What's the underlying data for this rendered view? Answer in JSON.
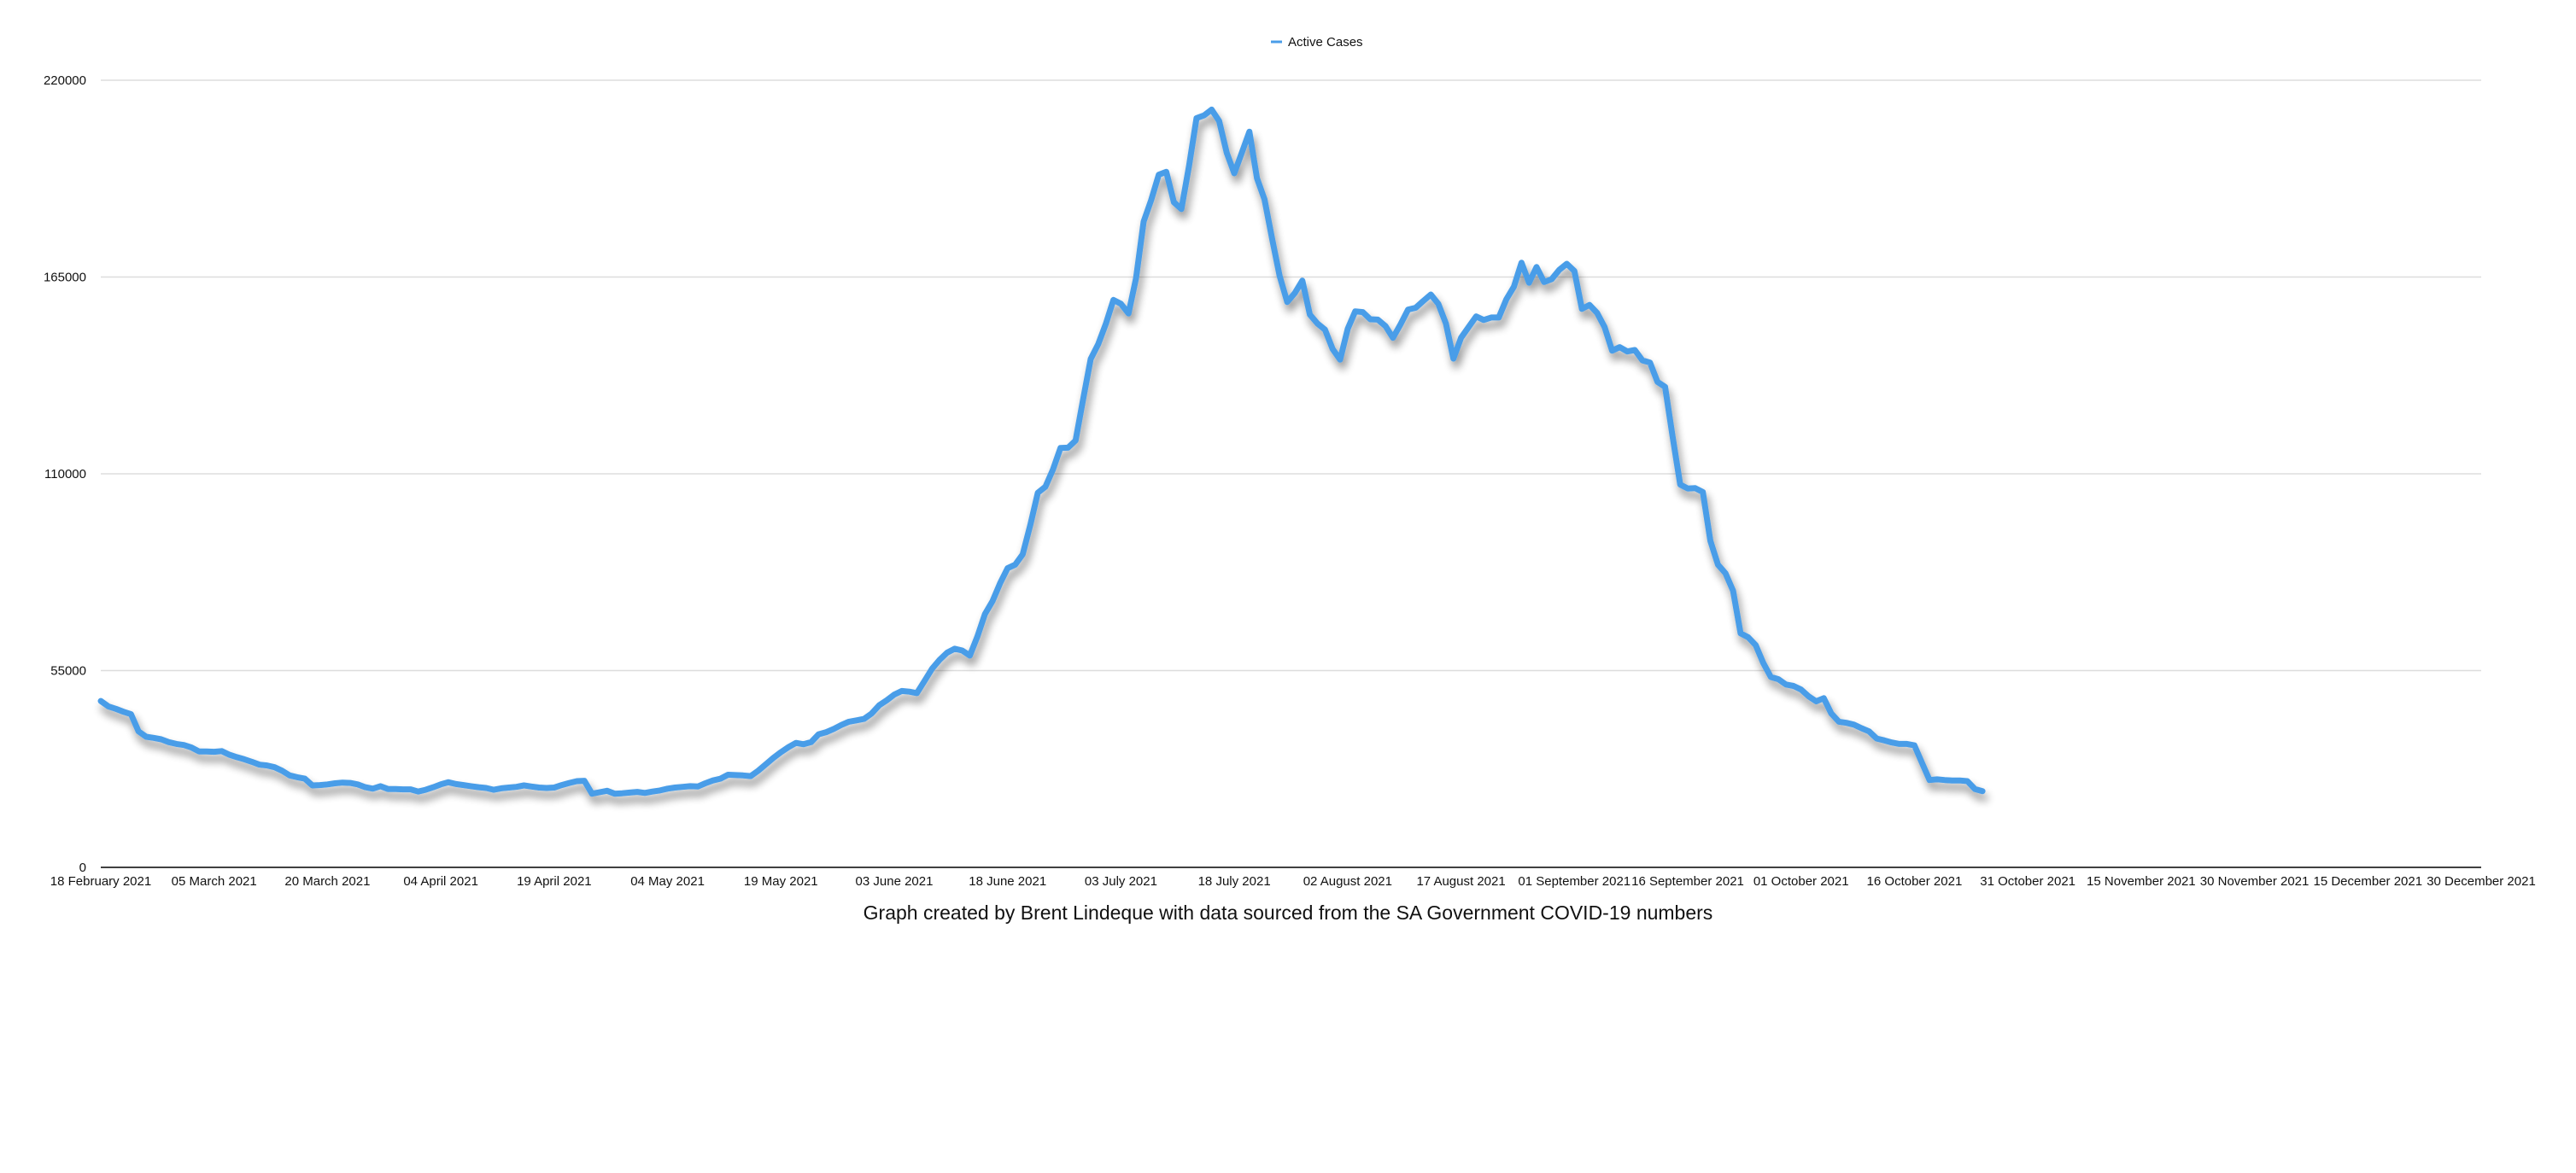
{
  "caption": "Graph created by Brent Lindeque with data sourced from the SA Government COVID-19 numbers",
  "colors": {
    "series": "#4a9de8",
    "grid": "#dddddd",
    "axis": "#000000"
  },
  "chart_data": {
    "type": "line",
    "title": "",
    "xlabel": "",
    "ylabel": "",
    "legend": {
      "position": "top-center",
      "entries": [
        "Active Cases"
      ]
    },
    "grid": true,
    "x_type": "date",
    "xlim": [
      "2021-02-18",
      "2021-12-30"
    ],
    "ylim": [
      0,
      220000
    ],
    "y_ticks": [
      0,
      55000,
      110000,
      165000,
      220000
    ],
    "x_ticks": [
      {
        "date": "2021-02-18",
        "label": "18 February 2021"
      },
      {
        "date": "2021-03-05",
        "label": "05 March 2021"
      },
      {
        "date": "2021-03-20",
        "label": "20 March 2021"
      },
      {
        "date": "2021-04-04",
        "label": "04 April 2021"
      },
      {
        "date": "2021-04-19",
        "label": "19 April 2021"
      },
      {
        "date": "2021-05-04",
        "label": "04 May 2021"
      },
      {
        "date": "2021-05-19",
        "label": "19 May 2021"
      },
      {
        "date": "2021-06-03",
        "label": "03 June 2021"
      },
      {
        "date": "2021-06-18",
        "label": "18 June 2021"
      },
      {
        "date": "2021-07-03",
        "label": "03 July 2021"
      },
      {
        "date": "2021-07-18",
        "label": "18 July 2021"
      },
      {
        "date": "2021-08-02",
        "label": "02 August 2021"
      },
      {
        "date": "2021-08-17",
        "label": "17 August 2021"
      },
      {
        "date": "2021-09-01",
        "label": "01 September 2021"
      },
      {
        "date": "2021-09-16",
        "label": "16 September 2021"
      },
      {
        "date": "2021-10-01",
        "label": "01 October 2021"
      },
      {
        "date": "2021-10-16",
        "label": "16 October 2021"
      },
      {
        "date": "2021-10-31",
        "label": "31 October 2021"
      },
      {
        "date": "2021-11-15",
        "label": "15 November 2021"
      },
      {
        "date": "2021-11-30",
        "label": "30 November 2021"
      },
      {
        "date": "2021-12-15",
        "label": "15 December 2021"
      },
      {
        "date": "2021-12-30",
        "label": "30 December 2021"
      }
    ],
    "series": [
      {
        "name": "Active Cases",
        "points": [
          [
            "2021-02-18",
            46500
          ],
          [
            "2021-02-19",
            45000
          ],
          [
            "2021-02-20",
            44300
          ],
          [
            "2021-02-21",
            43500
          ],
          [
            "2021-02-22",
            42800
          ],
          [
            "2021-02-23",
            38000
          ],
          [
            "2021-02-24",
            36500
          ],
          [
            "2021-02-25",
            36200
          ],
          [
            "2021-02-26",
            35800
          ],
          [
            "2021-02-27",
            35000
          ],
          [
            "2021-02-28",
            34500
          ],
          [
            "2021-03-01",
            34200
          ],
          [
            "2021-03-02",
            33500
          ],
          [
            "2021-03-03",
            32400
          ],
          [
            "2021-03-04",
            32400
          ],
          [
            "2021-03-05",
            32300
          ],
          [
            "2021-03-06",
            32500
          ],
          [
            "2021-03-07",
            31500
          ],
          [
            "2021-03-08",
            30800
          ],
          [
            "2021-03-09",
            30200
          ],
          [
            "2021-03-10",
            29500
          ],
          [
            "2021-03-11",
            28700
          ],
          [
            "2021-03-12",
            28500
          ],
          [
            "2021-03-13",
            28000
          ],
          [
            "2021-03-14",
            27000
          ],
          [
            "2021-03-15",
            25700
          ],
          [
            "2021-03-16",
            25200
          ],
          [
            "2021-03-17",
            24800
          ],
          [
            "2021-03-18",
            22900
          ],
          [
            "2021-03-19",
            23000
          ],
          [
            "2021-03-20",
            23200
          ],
          [
            "2021-03-21",
            23500
          ],
          [
            "2021-03-22",
            23700
          ],
          [
            "2021-03-23",
            23600
          ],
          [
            "2021-03-24",
            23200
          ],
          [
            "2021-03-25",
            22400
          ],
          [
            "2021-03-26",
            22000
          ],
          [
            "2021-03-27",
            22700
          ],
          [
            "2021-03-28",
            21900
          ],
          [
            "2021-03-29",
            21900
          ],
          [
            "2021-03-30",
            21800
          ],
          [
            "2021-03-31",
            21800
          ],
          [
            "2021-04-01",
            21200
          ],
          [
            "2021-04-02",
            21700
          ],
          [
            "2021-04-03",
            22400
          ],
          [
            "2021-04-04",
            23200
          ],
          [
            "2021-04-05",
            23800
          ],
          [
            "2021-04-06",
            23300
          ],
          [
            "2021-04-07",
            23000
          ],
          [
            "2021-04-08",
            22700
          ],
          [
            "2021-04-09",
            22400
          ],
          [
            "2021-04-10",
            22200
          ],
          [
            "2021-04-11",
            21700
          ],
          [
            "2021-04-12",
            22100
          ],
          [
            "2021-04-13",
            22300
          ],
          [
            "2021-04-14",
            22500
          ],
          [
            "2021-04-15",
            22900
          ],
          [
            "2021-04-16",
            22600
          ],
          [
            "2021-04-17",
            22300
          ],
          [
            "2021-04-18",
            22200
          ],
          [
            "2021-04-19",
            22300
          ],
          [
            "2021-04-20",
            23000
          ],
          [
            "2021-04-21",
            23600
          ],
          [
            "2021-04-22",
            24100
          ],
          [
            "2021-04-23",
            24200
          ],
          [
            "2021-04-24",
            20600
          ],
          [
            "2021-04-25",
            21000
          ],
          [
            "2021-04-26",
            21400
          ],
          [
            "2021-04-27",
            20600
          ],
          [
            "2021-04-28",
            20700
          ],
          [
            "2021-04-29",
            20900
          ],
          [
            "2021-04-30",
            21100
          ],
          [
            "2021-05-01",
            20800
          ],
          [
            "2021-05-02",
            21200
          ],
          [
            "2021-05-03",
            21500
          ],
          [
            "2021-05-04",
            22000
          ],
          [
            "2021-05-05",
            22300
          ],
          [
            "2021-05-06",
            22500
          ],
          [
            "2021-05-07",
            22700
          ],
          [
            "2021-05-08",
            22600
          ],
          [
            "2021-05-09",
            23500
          ],
          [
            "2021-05-10",
            24300
          ],
          [
            "2021-05-11",
            24800
          ],
          [
            "2021-05-12",
            25900
          ],
          [
            "2021-05-13",
            25800
          ],
          [
            "2021-05-14",
            25700
          ],
          [
            "2021-05-15",
            25500
          ],
          [
            "2021-05-16",
            27000
          ],
          [
            "2021-05-17",
            28800
          ],
          [
            "2021-05-18",
            30600
          ],
          [
            "2021-05-19",
            32200
          ],
          [
            "2021-05-20",
            33600
          ],
          [
            "2021-05-21",
            34800
          ],
          [
            "2021-05-22",
            34400
          ],
          [
            "2021-05-23",
            35000
          ],
          [
            "2021-05-24",
            37200
          ],
          [
            "2021-05-25",
            37800
          ],
          [
            "2021-05-26",
            38700
          ],
          [
            "2021-05-27",
            39800
          ],
          [
            "2021-05-28",
            40700
          ],
          [
            "2021-05-29",
            41100
          ],
          [
            "2021-05-30",
            41500
          ],
          [
            "2021-05-31",
            43000
          ],
          [
            "2021-06-01",
            45300
          ],
          [
            "2021-06-02",
            46700
          ],
          [
            "2021-06-03",
            48300
          ],
          [
            "2021-06-04",
            49300
          ],
          [
            "2021-06-05",
            49100
          ],
          [
            "2021-06-06",
            48700
          ],
          [
            "2021-06-07",
            52100
          ],
          [
            "2021-06-08",
            55500
          ],
          [
            "2021-06-09",
            58000
          ],
          [
            "2021-06-10",
            60000
          ],
          [
            "2021-06-11",
            61100
          ],
          [
            "2021-06-12",
            60600
          ],
          [
            "2021-06-13",
            59200
          ],
          [
            "2021-06-14",
            64500
          ],
          [
            "2021-06-15",
            70800
          ],
          [
            "2021-06-16",
            74400
          ],
          [
            "2021-06-17",
            79400
          ],
          [
            "2021-06-18",
            83600
          ],
          [
            "2021-06-19",
            84600
          ],
          [
            "2021-06-20",
            87500
          ],
          [
            "2021-06-21",
            95700
          ],
          [
            "2021-06-22",
            104700
          ],
          [
            "2021-06-23",
            106400
          ],
          [
            "2021-06-24",
            111200
          ],
          [
            "2021-06-25",
            117200
          ],
          [
            "2021-06-26",
            117300
          ],
          [
            "2021-06-27",
            119300
          ],
          [
            "2021-06-28",
            130900
          ],
          [
            "2021-06-29",
            142100
          ],
          [
            "2021-06-30",
            146300
          ],
          [
            "2021-07-01",
            151900
          ],
          [
            "2021-07-02",
            158600
          ],
          [
            "2021-07-03",
            157500
          ],
          [
            "2021-07-04",
            154800
          ],
          [
            "2021-07-05",
            164700
          ],
          [
            "2021-07-06",
            180500
          ],
          [
            "2021-07-07",
            186500
          ],
          [
            "2021-07-08",
            193600
          ],
          [
            "2021-07-09",
            194400
          ],
          [
            "2021-07-10",
            185900
          ],
          [
            "2021-07-11",
            184000
          ],
          [
            "2021-07-12",
            196000
          ],
          [
            "2021-07-13",
            209400
          ],
          [
            "2021-07-14",
            210200
          ],
          [
            "2021-07-15",
            211800
          ],
          [
            "2021-07-16",
            208600
          ],
          [
            "2021-07-17",
            199700
          ],
          [
            "2021-07-18",
            194000
          ],
          [
            "2021-07-19",
            199800
          ],
          [
            "2021-07-20",
            205600
          ],
          [
            "2021-07-21",
            192600
          ],
          [
            "2021-07-22",
            186700
          ],
          [
            "2021-07-23",
            175700
          ],
          [
            "2021-07-24",
            165300
          ],
          [
            "2021-07-25",
            158000
          ],
          [
            "2021-07-26",
            160500
          ],
          [
            "2021-07-27",
            164000
          ],
          [
            "2021-07-28",
            154500
          ],
          [
            "2021-07-29",
            152000
          ],
          [
            "2021-07-30",
            150300
          ],
          [
            "2021-07-31",
            144900
          ],
          [
            "2021-08-01",
            141900
          ],
          [
            "2021-08-02",
            150500
          ],
          [
            "2021-08-03",
            155400
          ],
          [
            "2021-08-04",
            155200
          ],
          [
            "2021-08-05",
            153200
          ],
          [
            "2021-08-06",
            153100
          ],
          [
            "2021-08-07",
            151300
          ],
          [
            "2021-08-08",
            148000
          ],
          [
            "2021-08-09",
            151800
          ],
          [
            "2021-08-10",
            155900
          ],
          [
            "2021-08-11",
            156400
          ],
          [
            "2021-08-12",
            158300
          ],
          [
            "2021-08-13",
            160100
          ],
          [
            "2021-08-14",
            157500
          ],
          [
            "2021-08-15",
            152000
          ],
          [
            "2021-08-16",
            142200
          ],
          [
            "2021-08-17",
            148000
          ],
          [
            "2021-08-18",
            151000
          ],
          [
            "2021-08-19",
            154000
          ],
          [
            "2021-08-20",
            153000
          ],
          [
            "2021-08-21",
            153700
          ],
          [
            "2021-08-22",
            153700
          ],
          [
            "2021-08-23",
            158800
          ],
          [
            "2021-08-24",
            162300
          ],
          [
            "2021-08-25",
            169000
          ],
          [
            "2021-08-26",
            163400
          ],
          [
            "2021-08-27",
            167800
          ],
          [
            "2021-08-28",
            163600
          ],
          [
            "2021-08-29",
            164400
          ],
          [
            "2021-08-30",
            167000
          ],
          [
            "2021-08-31",
            168700
          ],
          [
            "2021-09-01",
            166700
          ],
          [
            "2021-09-02",
            156100
          ],
          [
            "2021-09-03",
            157200
          ],
          [
            "2021-09-04",
            155000
          ],
          [
            "2021-09-05",
            151000
          ],
          [
            "2021-09-06",
            144400
          ],
          [
            "2021-09-07",
            145400
          ],
          [
            "2021-09-08",
            144200
          ],
          [
            "2021-09-09",
            144600
          ],
          [
            "2021-09-10",
            141700
          ],
          [
            "2021-09-11",
            141100
          ],
          [
            "2021-09-12",
            135700
          ],
          [
            "2021-09-13",
            134300
          ],
          [
            "2021-09-14",
            120400
          ],
          [
            "2021-09-15",
            107000
          ],
          [
            "2021-09-16",
            105900
          ],
          [
            "2021-09-17",
            106000
          ],
          [
            "2021-09-18",
            104900
          ],
          [
            "2021-09-19",
            91300
          ],
          [
            "2021-09-20",
            84600
          ],
          [
            "2021-09-21",
            82200
          ],
          [
            "2021-09-22",
            77300
          ],
          [
            "2021-09-23",
            65400
          ],
          [
            "2021-09-24",
            64300
          ],
          [
            "2021-09-25",
            62100
          ],
          [
            "2021-09-26",
            57100
          ],
          [
            "2021-09-27",
            53200
          ],
          [
            "2021-09-28",
            52600
          ],
          [
            "2021-09-29",
            51100
          ],
          [
            "2021-09-30",
            50700
          ],
          [
            "2021-10-01",
            49700
          ],
          [
            "2021-10-02",
            47800
          ],
          [
            "2021-10-03",
            46400
          ],
          [
            "2021-10-04",
            47300
          ],
          [
            "2021-10-05",
            43000
          ],
          [
            "2021-10-06",
            40700
          ],
          [
            "2021-10-07",
            40400
          ],
          [
            "2021-10-08",
            39900
          ],
          [
            "2021-10-09",
            38900
          ],
          [
            "2021-10-10",
            38000
          ],
          [
            "2021-10-11",
            36000
          ],
          [
            "2021-10-12",
            35500
          ],
          [
            "2021-10-13",
            34900
          ],
          [
            "2021-10-14",
            34500
          ],
          [
            "2021-10-15",
            34500
          ],
          [
            "2021-10-16",
            34100
          ],
          [
            "2021-10-17",
            29200
          ],
          [
            "2021-10-18",
            24400
          ],
          [
            "2021-10-19",
            24600
          ],
          [
            "2021-10-20",
            24400
          ],
          [
            "2021-10-21",
            24300
          ],
          [
            "2021-10-22",
            24300
          ],
          [
            "2021-10-23",
            24100
          ],
          [
            "2021-10-24",
            21900
          ],
          [
            "2021-10-25",
            21300
          ]
        ]
      }
    ]
  }
}
